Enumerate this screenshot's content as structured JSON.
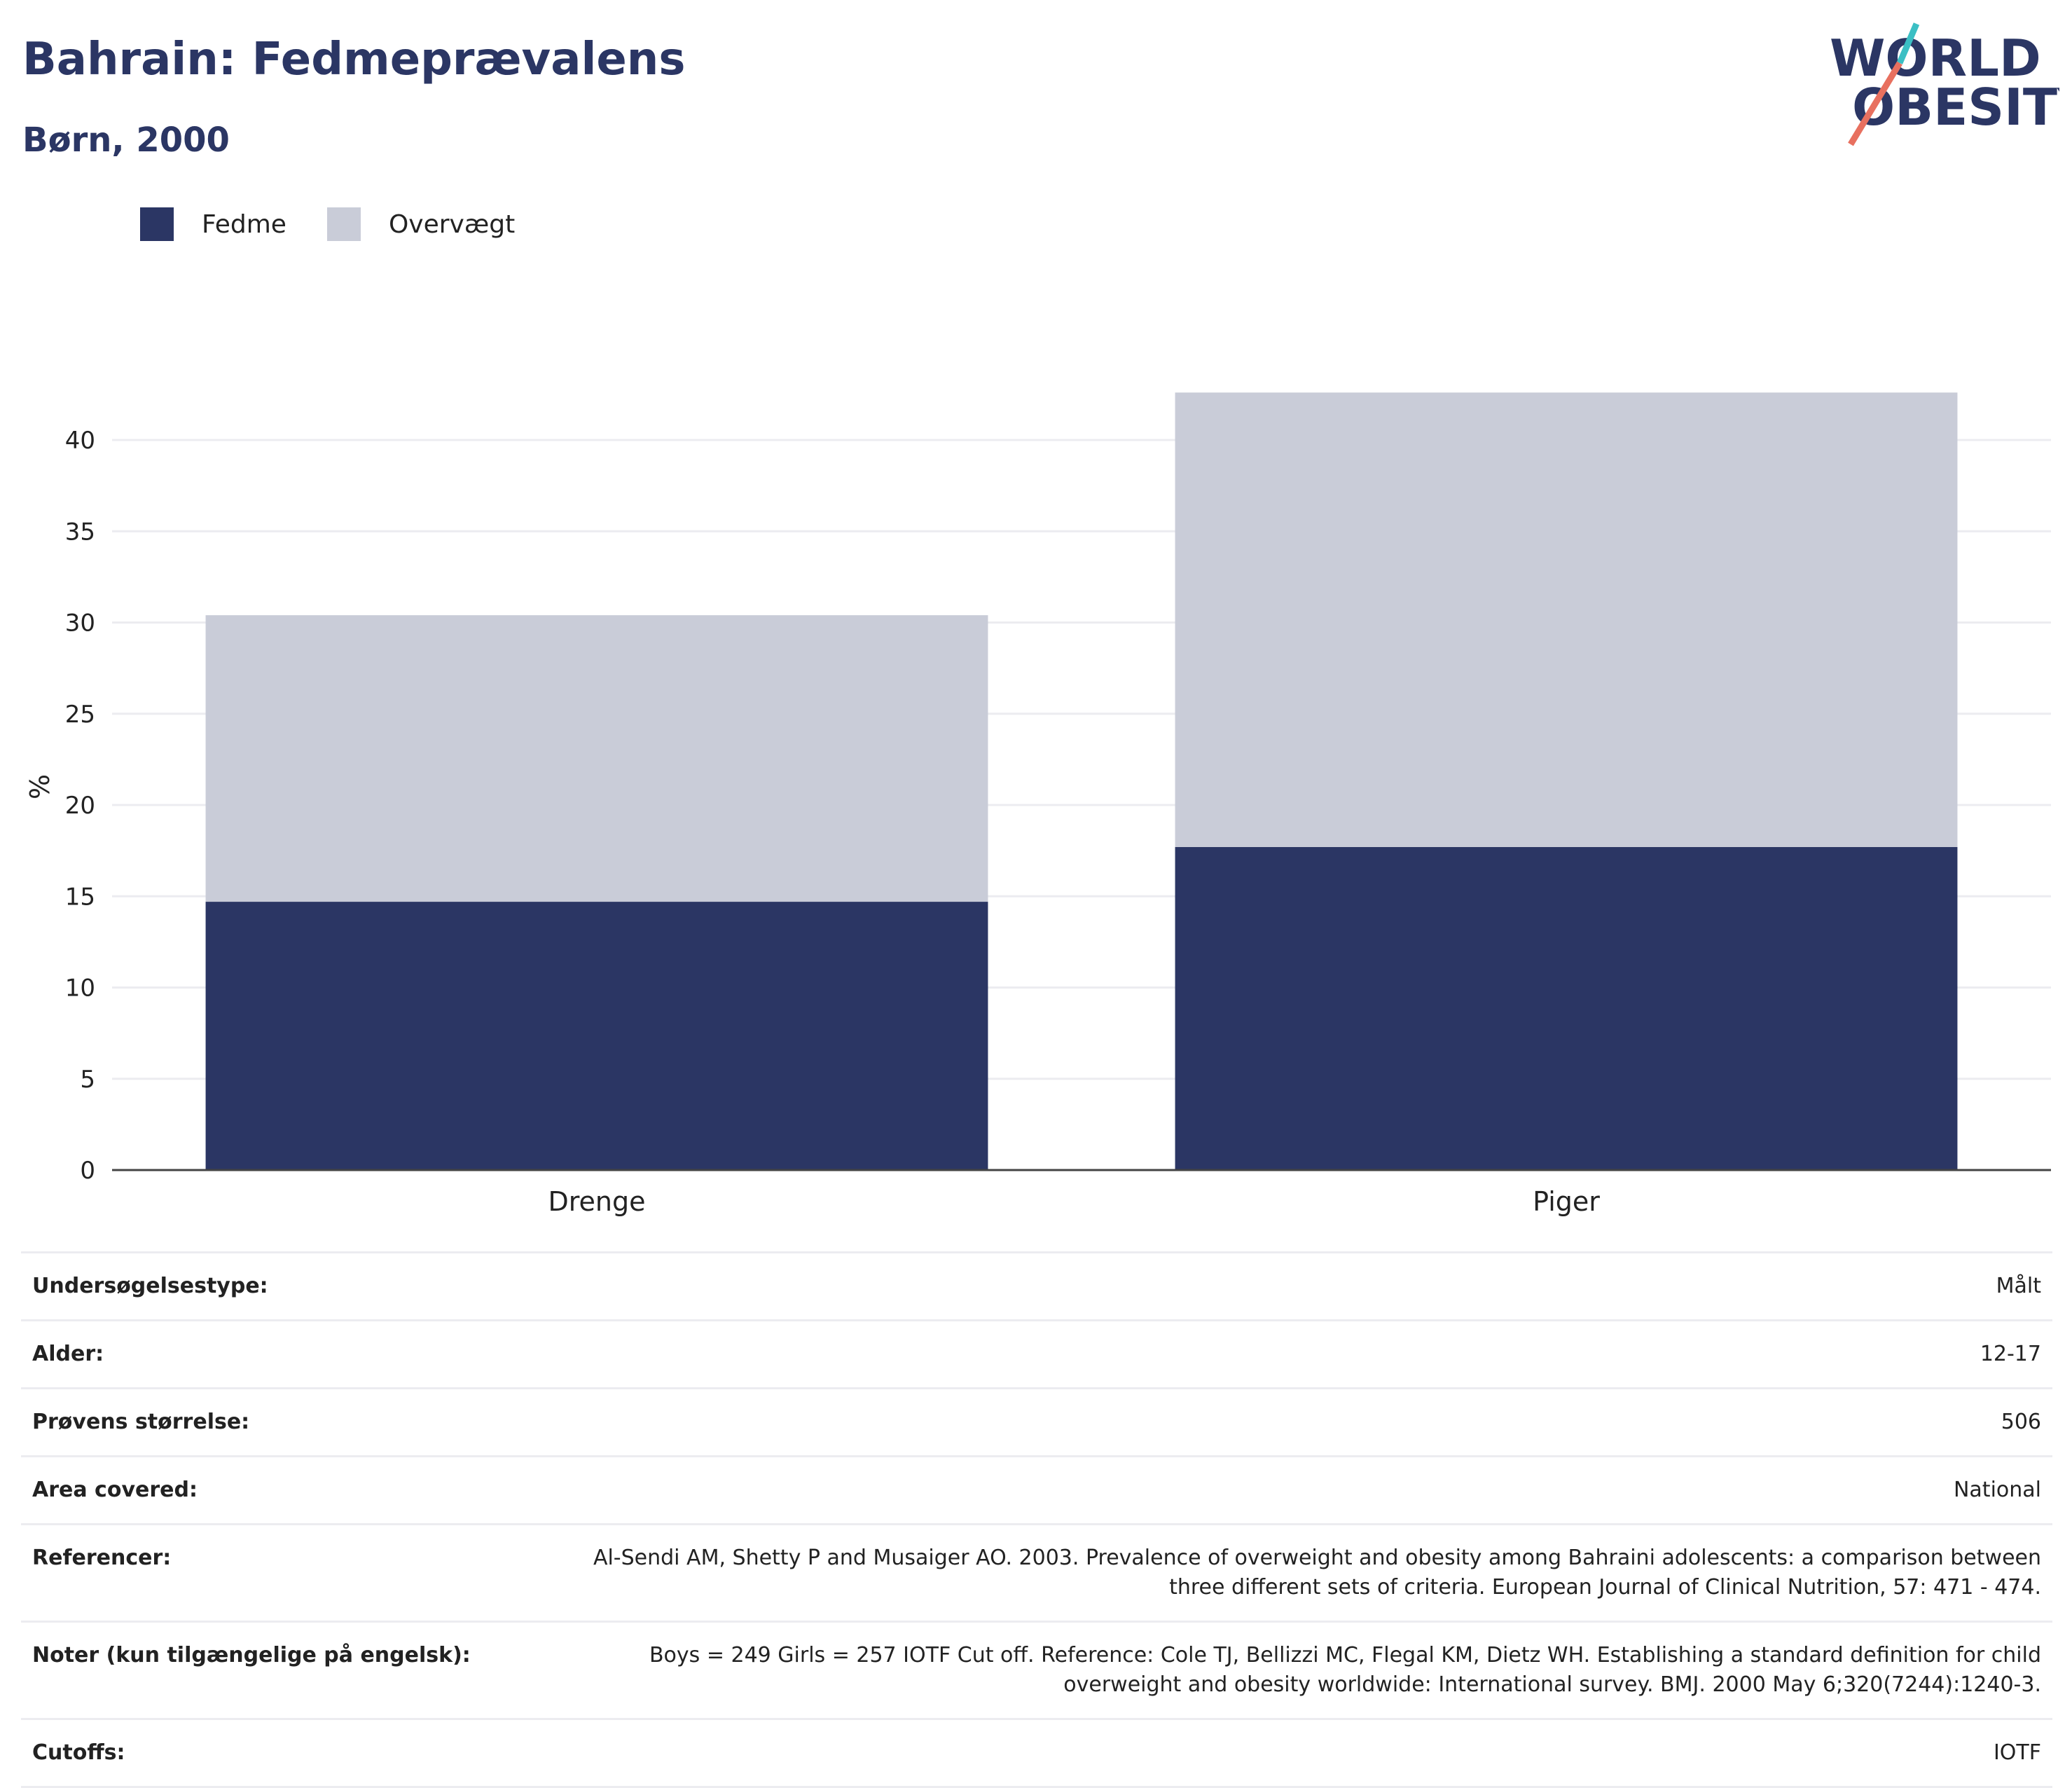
{
  "header": {
    "title": "Bahrain: Fedmeprævalens",
    "subtitle": "Børn, 2000"
  },
  "logo": {
    "line1": "WORLD",
    "line2": "OBESITY",
    "colors": {
      "text": "#2b3664",
      "slash_top": "#3bbfc4",
      "slash_bottom": "#e8705f"
    }
  },
  "colors": {
    "obesity": "#2b3664",
    "overweight": "#c9ccd8",
    "grid": "#ececf0",
    "axis": "#444444"
  },
  "chart_data": {
    "type": "bar",
    "stacked": true,
    "categories": [
      "Drenge",
      "Piger"
    ],
    "series": [
      {
        "name": "Fedme",
        "values": [
          14.7,
          17.7
        ],
        "color": "#2b3664"
      },
      {
        "name": "Overvægt",
        "values": [
          15.7,
          24.9
        ],
        "color": "#c9ccd8"
      }
    ],
    "ylabel": "%",
    "ylim": [
      0,
      43
    ],
    "yticks": [
      0,
      5,
      10,
      15,
      20,
      25,
      30,
      35,
      40
    ],
    "legend": "top-left",
    "grid": true
  },
  "info_table": [
    {
      "label": "Undersøgelsestype:",
      "value": "Målt"
    },
    {
      "label": "Alder:",
      "value": "12-17"
    },
    {
      "label": "Prøvens størrelse:",
      "value": "506"
    },
    {
      "label": "Area covered:",
      "value": "National"
    },
    {
      "label": "Referencer:",
      "value": "Al-Sendi AM, Shetty P and Musaiger AO. 2003. Prevalence of overweight and obesity among Bahraini adolescents: a comparison between three different sets of criteria. European Journal of Clinical Nutrition, 57: 471 - 474."
    },
    {
      "label": "Noter (kun tilgængelige på engelsk):",
      "value": "Boys = 249 Girls = 257 IOTF Cut off. Reference: Cole TJ, Bellizzi MC, Flegal KM, Dietz WH. Establishing a standard definition for child overweight and obesity worldwide: International survey. BMJ. 2000 May 6;320(7244):1240-3."
    },
    {
      "label": "Cutoffs:",
      "value": "IOTF"
    }
  ]
}
